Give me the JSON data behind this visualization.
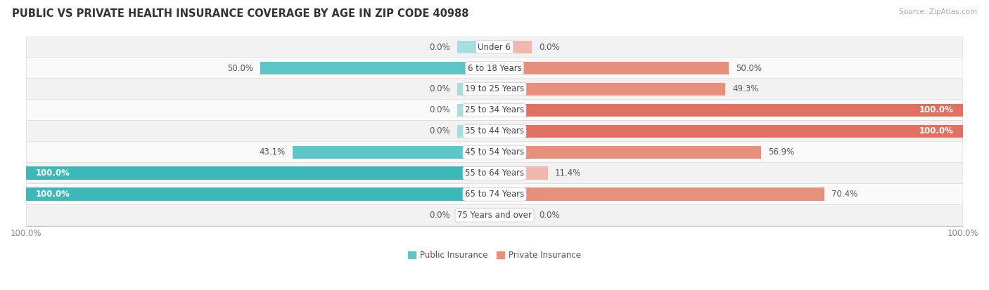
{
  "title": "PUBLIC VS PRIVATE HEALTH INSURANCE COVERAGE BY AGE IN ZIP CODE 40988",
  "source": "Source: ZipAtlas.com",
  "categories": [
    "Under 6",
    "6 to 18 Years",
    "19 to 25 Years",
    "25 to 34 Years",
    "35 to 44 Years",
    "45 to 54 Years",
    "55 to 64 Years",
    "65 to 74 Years",
    "75 Years and over"
  ],
  "public_values": [
    0.0,
    50.0,
    0.0,
    0.0,
    0.0,
    43.1,
    100.0,
    100.0,
    0.0
  ],
  "private_values": [
    0.0,
    50.0,
    49.3,
    100.0,
    100.0,
    56.9,
    11.4,
    70.4,
    0.0
  ],
  "public_color_full": "#3db8b8",
  "public_color_mid": "#5cc5c5",
  "public_color_light": "#a8dede",
  "private_color_full": "#e07060",
  "private_color_mid": "#e8907e",
  "private_color_light": "#f0b8b0",
  "row_bg_even": "#f2f2f2",
  "row_bg_odd": "#fafafa",
  "label_fontsize": 8.5,
  "title_fontsize": 10.5,
  "stub_value": 8,
  "figsize": [
    14.06,
    4.13
  ],
  "dpi": 100
}
